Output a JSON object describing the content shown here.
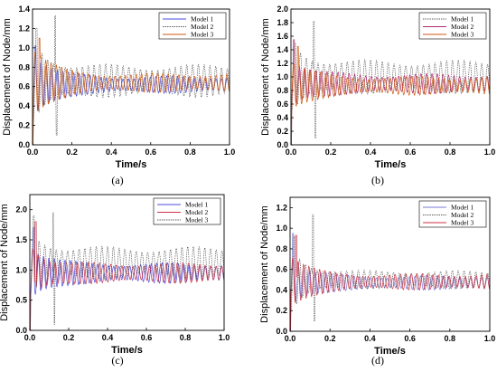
{
  "chart_data": [
    {
      "panel": "(a)",
      "type": "line",
      "xlabel": "Time/s",
      "ylabel": "Displacement of Node/mm",
      "xlim": [
        0.0,
        1.0
      ],
      "ylim": [
        0.0,
        1.4
      ],
      "xticks": [
        "0.0",
        "0.2",
        "0.4",
        "0.6",
        "0.8",
        "1.0"
      ],
      "yticks": [
        "0.0",
        "0.2",
        "0.4",
        "0.6",
        "0.8",
        "1.0",
        "1.2",
        "1.4"
      ],
      "legend_position": "top-right",
      "series": [
        {
          "name": "Model 1",
          "color": "#4a4ae0",
          "dash": "",
          "params": {
            "mean": 0.62,
            "a0": 0.55,
            "a1": 0.09,
            "freq": 36,
            "peak_t": 0.015,
            "peak_v": 1.02,
            "spike_t": -1,
            "spike_v": 0
          }
        },
        {
          "name": "Model 2",
          "color": "#555555",
          "dash": "1.4 1.1",
          "params": {
            "mean": 0.66,
            "a0": 0.5,
            "a1": 0.17,
            "freq": 34,
            "peak_t": 0.02,
            "peak_v": 1.2,
            "spike_t": 0.115,
            "spike_v": 1.33
          }
        },
        {
          "name": "Model 3",
          "color": "#cc5a10",
          "dash": "",
          "params": {
            "mean": 0.64,
            "a0": 0.5,
            "a1": 0.1,
            "freq": 37,
            "peak_t": 0.035,
            "peak_v": 1.1,
            "spike_t": -1,
            "spike_v": 0
          }
        }
      ]
    },
    {
      "panel": "(b)",
      "type": "line",
      "xlabel": "Time/s",
      "ylabel": "Displacement of Node/mm",
      "xlim": [
        0.0,
        1.0
      ],
      "ylim": [
        0.0,
        2.0
      ],
      "xticks": [
        "0.0",
        "0.2",
        "0.4",
        "0.6",
        "0.8",
        "1.0"
      ],
      "yticks": [
        "0.0",
        "0.2",
        "0.4",
        "0.6",
        "0.8",
        "1.0",
        "1.2",
        "1.4",
        "1.6",
        "1.8",
        "2.0"
      ],
      "legend_position": "top-right",
      "series": [
        {
          "name": "Model 1",
          "color": "#555555",
          "dash": "1.4 1.1",
          "params": {
            "mean": 1.0,
            "a0": 0.6,
            "a1": 0.25,
            "freq": 34,
            "peak_t": 0.02,
            "peak_v": 1.5,
            "spike_t": 0.115,
            "spike_v": 1.82
          }
        },
        {
          "name": "Model 2",
          "color": "#b02a6e",
          "dash": "",
          "params": {
            "mean": 0.9,
            "a0": 0.55,
            "a1": 0.15,
            "freq": 36,
            "peak_t": 0.015,
            "peak_v": 1.55,
            "spike_t": -1,
            "spike_v": 0
          }
        },
        {
          "name": "Model 3",
          "color": "#cc5a10",
          "dash": "",
          "params": {
            "mean": 0.87,
            "a0": 0.5,
            "a1": 0.14,
            "freq": 37,
            "peak_t": 0.035,
            "peak_v": 1.45,
            "spike_t": -1,
            "spike_v": 0
          }
        }
      ]
    },
    {
      "panel": "(c)",
      "type": "line",
      "xlabel": "Time/s",
      "ylabel": "Displacement of Node/mm",
      "xlim": [
        0.0,
        1.0
      ],
      "ylim": [
        0.0,
        2.25
      ],
      "xticks": [
        "0.0",
        "0.2",
        "0.4",
        "0.6",
        "0.8",
        "1.0"
      ],
      "yticks": [
        "0.0",
        "0.5",
        "1.0",
        "1.5",
        "2.0"
      ],
      "legend_position": "top-right",
      "series": [
        {
          "name": "Model 1",
          "color": "#4a4ae0",
          "dash": "",
          "params": {
            "mean": 0.95,
            "a0": 0.7,
            "a1": 0.17,
            "freq": 36,
            "peak_t": 0.02,
            "peak_v": 1.7,
            "spike_t": -1,
            "spike_v": 0
          }
        },
        {
          "name": "Model 2",
          "color": "#cc3344",
          "dash": "",
          "params": {
            "mean": 0.95,
            "a0": 0.65,
            "a1": 0.17,
            "freq": 35,
            "peak_t": 0.03,
            "peak_v": 1.8,
            "spike_t": -1,
            "spike_v": 0
          }
        },
        {
          "name": "Model 3",
          "color": "#555555",
          "dash": "1.4 1.1",
          "params": {
            "mean": 1.12,
            "a0": 0.6,
            "a1": 0.27,
            "freq": 34,
            "peak_t": 0.02,
            "peak_v": 1.9,
            "spike_t": 0.12,
            "spike_v": 1.95
          }
        }
      ]
    },
    {
      "panel": "(d)",
      "type": "line",
      "xlabel": "Time/s",
      "ylabel": "Displacement of Node/mm",
      "xlim": [
        0.0,
        1.0
      ],
      "ylim": [
        0.0,
        1.3
      ],
      "xticks": [
        "0.0",
        "0.2",
        "0.4",
        "0.6",
        "0.8",
        "1.0"
      ],
      "yticks": [
        "0.0",
        "0.2",
        "0.4",
        "0.6",
        "0.8",
        "1.0",
        "1.2"
      ],
      "legend_position": "top-right",
      "series": [
        {
          "name": "Model 1",
          "color": "#7a7ad8",
          "dash": "",
          "params": {
            "mean": 0.47,
            "a0": 0.35,
            "a1": 0.07,
            "freq": 36,
            "peak_t": 0.015,
            "peak_v": 0.95,
            "spike_t": -1,
            "spike_v": 0
          }
        },
        {
          "name": "Model 2",
          "color": "#555555",
          "dash": "1.4 1.1",
          "params": {
            "mean": 0.5,
            "a0": 0.38,
            "a1": 0.09,
            "freq": 34,
            "peak_t": 0.02,
            "peak_v": 0.92,
            "spike_t": 0.115,
            "spike_v": 1.13
          }
        },
        {
          "name": "Model 3",
          "color": "#cc3344",
          "dash": "",
          "params": {
            "mean": 0.48,
            "a0": 0.35,
            "a1": 0.08,
            "freq": 37,
            "peak_t": 0.03,
            "peak_v": 0.93,
            "spike_t": -1,
            "spike_v": 0
          }
        }
      ]
    }
  ]
}
